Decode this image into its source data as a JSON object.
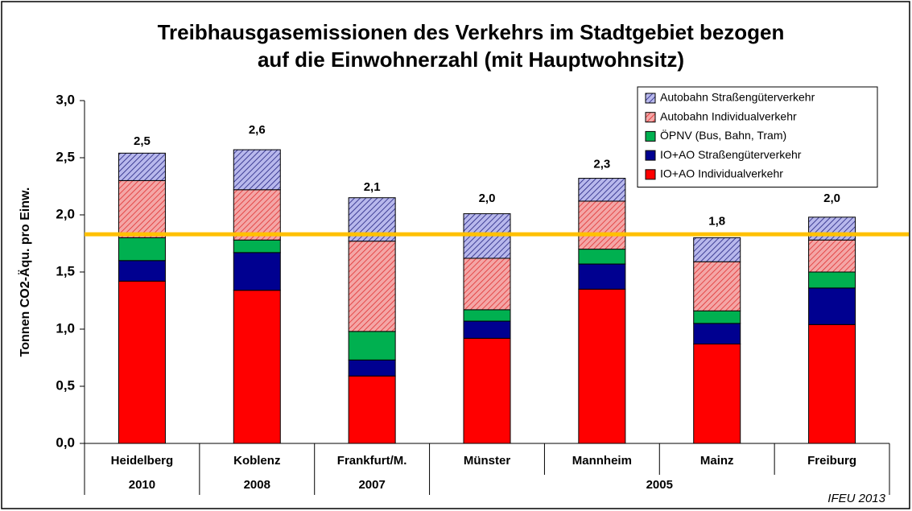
{
  "chart_data": {
    "type": "stacked_bar",
    "title": [
      "Treibhausgasemissionen des Verkehrs im Stadtgebiet bezogen",
      "auf die Einwohnerzahl (mit Hauptwohnsitz)"
    ],
    "y_label": "Tonnen CO2-Äqu. pro Einw.",
    "annotation": "IFEU 2013",
    "categories": [
      "Heidelberg",
      "Koblenz",
      "Frankfurt/M.",
      "Münster",
      "Mannheim",
      "Mainz",
      "Freiburg"
    ],
    "groups": [
      {
        "label": "2010",
        "count": 1
      },
      {
        "label": "2008",
        "count": 1
      },
      {
        "label": "2007",
        "count": 1
      },
      {
        "label": "2005",
        "count": 4
      }
    ],
    "series": [
      {
        "name": "IO+AO Individualverkehr",
        "color": "#ff0000",
        "values": [
          1.42,
          1.34,
          0.59,
          0.92,
          1.35,
          0.87,
          1.04
        ]
      },
      {
        "name": "IO+AO Straßengüterverkehr",
        "color": "#000090",
        "values": [
          0.18,
          0.33,
          0.14,
          0.15,
          0.22,
          0.18,
          0.32
        ]
      },
      {
        "name": "ÖPNV (Bus, Bahn, Tram)",
        "color": "#00b050",
        "values": [
          0.2,
          0.11,
          0.25,
          0.1,
          0.13,
          0.11,
          0.14
        ]
      },
      {
        "name": "Autobahn Individualverkehr",
        "color": "#f4a6a6",
        "hatch": "#e03030",
        "values": [
          0.5,
          0.44,
          0.79,
          0.45,
          0.42,
          0.43,
          0.28
        ]
      },
      {
        "name": "Autobahn Straßengüterverkehr",
        "color": "#b8b8ec",
        "hatch": "#202080",
        "values": [
          0.24,
          0.35,
          0.38,
          0.39,
          0.2,
          0.21,
          0.2
        ]
      }
    ],
    "totals": {
      "values": [
        2.5,
        2.6,
        2.1,
        2.0,
        2.3,
        1.8,
        2.0
      ],
      "value_labels": [
        "2,5",
        "2,6",
        "2,1",
        "2,0",
        "2,3",
        "1,8",
        "2,0"
      ]
    },
    "reference_line": {
      "value": 1.83,
      "color": "#ffc000"
    },
    "ylim": [
      0,
      3
    ],
    "yticks": [
      {
        "value": 0,
        "label": "0,0"
      },
      {
        "value": 0.5,
        "label": "0,5"
      },
      {
        "value": 1,
        "label": "1,0"
      },
      {
        "value": 1.5,
        "label": "1,5"
      },
      {
        "value": 2,
        "label": "2,0"
      },
      {
        "value": 2.5,
        "label": "2,5"
      },
      {
        "value": 3,
        "label": "3,0"
      }
    ],
    "legend": "top-right"
  }
}
